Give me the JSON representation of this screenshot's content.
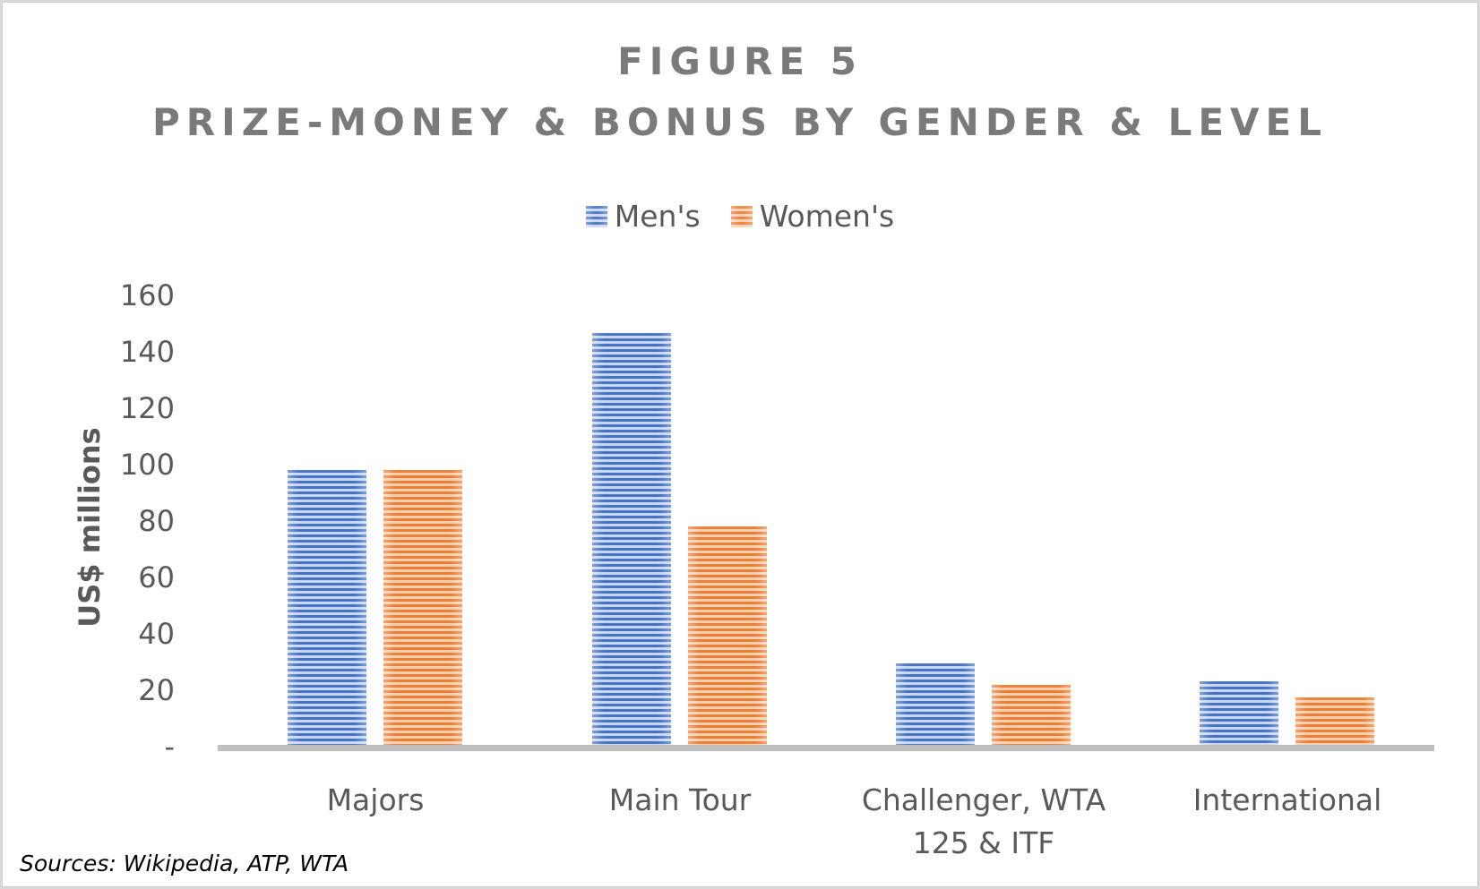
{
  "title_line1": "FIGURE 5",
  "title_line2": "PRIZE-MONEY & BONUS BY GENDER & LEVEL",
  "legend": [
    {
      "label": "Men's",
      "color": "#4472c4"
    },
    {
      "label": "Women's",
      "color": "#ed7d31"
    }
  ],
  "y_axis": {
    "label": "US$ millions",
    "ticks": [
      "160",
      "140",
      "120",
      "100",
      "80",
      "60",
      "40",
      "20",
      "-"
    ]
  },
  "x_axis": {
    "categories": [
      "Majors",
      "Main Tour",
      "Challenger, WTA 125 & ITF",
      "International"
    ]
  },
  "source": "Sources: Wikipedia, ATP, WTA",
  "chart_data": {
    "type": "bar",
    "title": "FIGURE 5 PRIZE-MONEY & BONUS BY GENDER & LEVEL",
    "categories": [
      "Majors",
      "Main Tour",
      "Challenger, WTA 125 & ITF",
      "International"
    ],
    "series": [
      {
        "name": "Men's",
        "color": "#4472c4",
        "values": [
          97.5,
          146,
          29,
          22.5
        ]
      },
      {
        "name": "Women's",
        "color": "#ed7d31",
        "values": [
          97.5,
          77.5,
          21.3,
          16.8
        ]
      }
    ],
    "xlabel": "",
    "ylabel": "US$ millions",
    "ylim": [
      0,
      160
    ],
    "yticks": [
      0,
      20,
      40,
      60,
      80,
      100,
      120,
      140,
      160
    ],
    "grid": false,
    "legend_position": "top",
    "annotation": "Sources: Wikipedia, ATP, WTA"
  }
}
